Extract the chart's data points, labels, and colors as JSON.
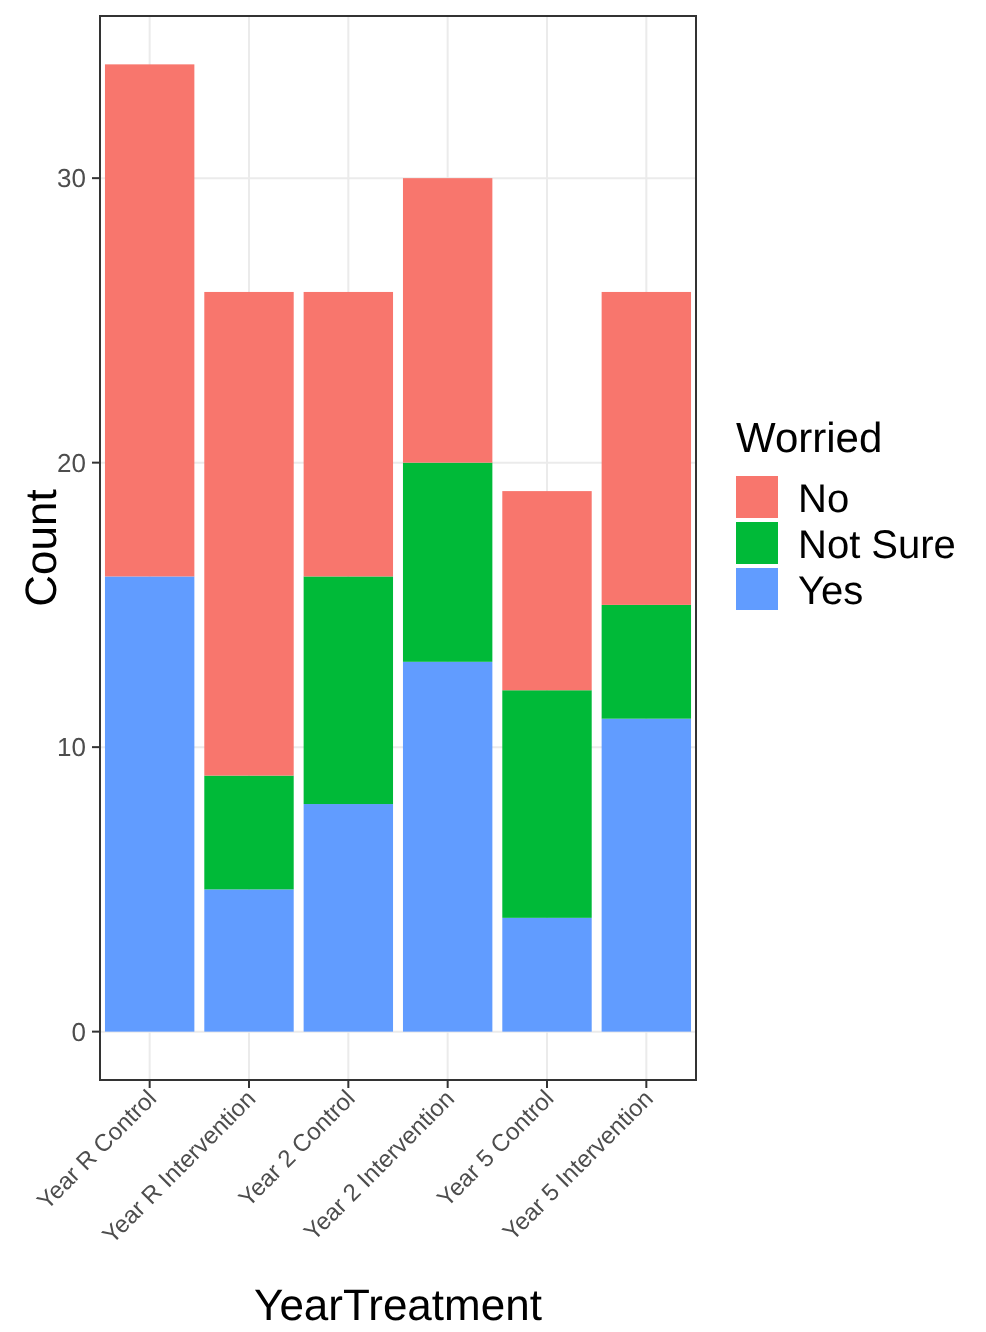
{
  "chart_data": {
    "type": "bar",
    "stacked": true,
    "xlabel": "YearTreatment",
    "ylabel": "Count",
    "legend_title": "Worried",
    "legend": "right",
    "grid": true,
    "categories": [
      "Year R Control",
      "Year R Intervention",
      "Year 2 Control",
      "Year 2 Intervention",
      "Year 5 Control",
      "Year 5 Intervention"
    ],
    "ylim": [
      -1.7,
      35.7
    ],
    "yticks": [
      0,
      10,
      20,
      30
    ],
    "series": [
      {
        "name": "Yes",
        "color": "#619cff",
        "values": [
          16,
          5,
          8,
          13,
          4,
          11
        ]
      },
      {
        "name": "Not Sure",
        "color": "#00ba38",
        "values": [
          0,
          4,
          8,
          7,
          8,
          4
        ]
      },
      {
        "name": "No",
        "color": "#f8766d",
        "values": [
          18,
          17,
          10,
          10,
          7,
          11
        ]
      }
    ]
  }
}
